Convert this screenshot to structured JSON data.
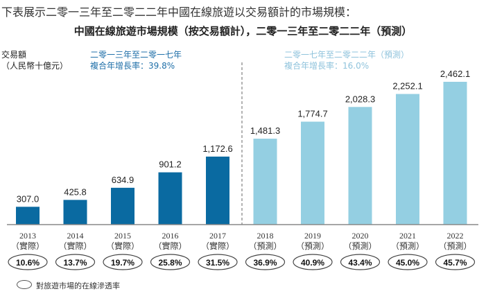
{
  "intro": "下表展示二零一三年至二零二二年中國在線旅遊以交易額計的市場規模：",
  "chart_data": {
    "type": "bar",
    "title": "中國在線旅遊市場規模（按交易額計），二零一三年至二零二二年（預測）",
    "ylabel": [
      "交易額",
      "（人民幣十億元）"
    ],
    "categories": [
      "2013",
      "2014",
      "2015",
      "2016",
      "2017",
      "2018",
      "2019",
      "2020",
      "2021",
      "2022"
    ],
    "sublabels": [
      "（實際）",
      "（實際）",
      "（實際）",
      "（實際）",
      "（實際）",
      "（預測）",
      "（預測）",
      "（預測）",
      "（預測）",
      "（預測）"
    ],
    "values": [
      307.0,
      425.8,
      634.9,
      901.2,
      1172.6,
      1481.3,
      1774.7,
      2028.3,
      2252.1,
      2462.1
    ],
    "value_labels": [
      "307.0",
      "425.8",
      "634.9",
      "901.2",
      "1,172.6",
      "1,481.3",
      "1,774.7",
      "2,028.3",
      "2,252.1",
      "2,462.1"
    ],
    "penetration": [
      "10.6%",
      "13.7%",
      "19.7%",
      "25.8%",
      "31.5%",
      "36.9%",
      "40.9%",
      "43.4%",
      "45.0%",
      "45.7%"
    ],
    "ylim": [
      0,
      2500
    ],
    "periods": [
      {
        "label": "二零一三年至二零一七年",
        "cagr": "複合年增長率：39.8%",
        "color": "#0a6aa1"
      },
      {
        "label": "二零一七年至二零二二年（預測）",
        "cagr": "複合年增長率：16.0%",
        "color": "#94cfe2"
      }
    ],
    "period_text_colors": [
      "#1f6fa8",
      "#8fc3dc"
    ],
    "legend": "對旅遊市場的在線滲透率"
  }
}
